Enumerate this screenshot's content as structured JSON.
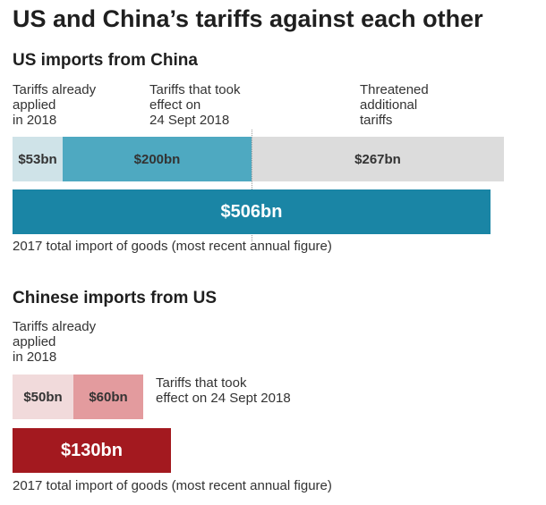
{
  "title": "US and China’s tariffs against each other",
  "colors": {
    "us_applied": "#cfe3e8",
    "us_took_effect": "#4ea9c1",
    "us_threatened": "#dcdcdc",
    "us_total": "#1a85a5",
    "cn_applied": "#f1dadb",
    "cn_took_effect": "#e39b9e",
    "cn_total": "#a3191f"
  },
  "chart_data": [
    {
      "type": "bar",
      "title": "US imports from China",
      "unit": "$bn",
      "segments": [
        {
          "key": "applied",
          "label_lines": [
            "Tariffs already",
            "applied",
            "in 2018"
          ],
          "value": 53,
          "value_label": "$53bn"
        },
        {
          "key": "took_effect",
          "label_lines": [
            "Tariffs that took",
            "effect on",
            "24 Sept 2018"
          ],
          "value": 200,
          "value_label": "$200bn"
        },
        {
          "key": "threatened",
          "label_lines": [
            "Threatened",
            "additional",
            "tariffs"
          ],
          "value": 267,
          "value_label": "$267bn"
        }
      ],
      "total": {
        "value": 506,
        "value_label": "$506bn",
        "caption": "2017 total import of goods (most recent annual figure)"
      }
    },
    {
      "type": "bar",
      "title": "Chinese imports from US",
      "unit": "$bn",
      "segments": [
        {
          "key": "applied",
          "label_lines": [
            "Tariffs already",
            "applied",
            "in 2018"
          ],
          "value": 50,
          "value_label": "$50bn"
        },
        {
          "key": "took_effect",
          "label_lines": [
            "Tariffs that took",
            "effect on 24 Sept 2018"
          ],
          "value": 60,
          "value_label": "$60bn"
        }
      ],
      "total": {
        "value": 130,
        "value_label": "$130bn",
        "caption": "2017 total import of goods (most recent annual figure)"
      }
    }
  ]
}
